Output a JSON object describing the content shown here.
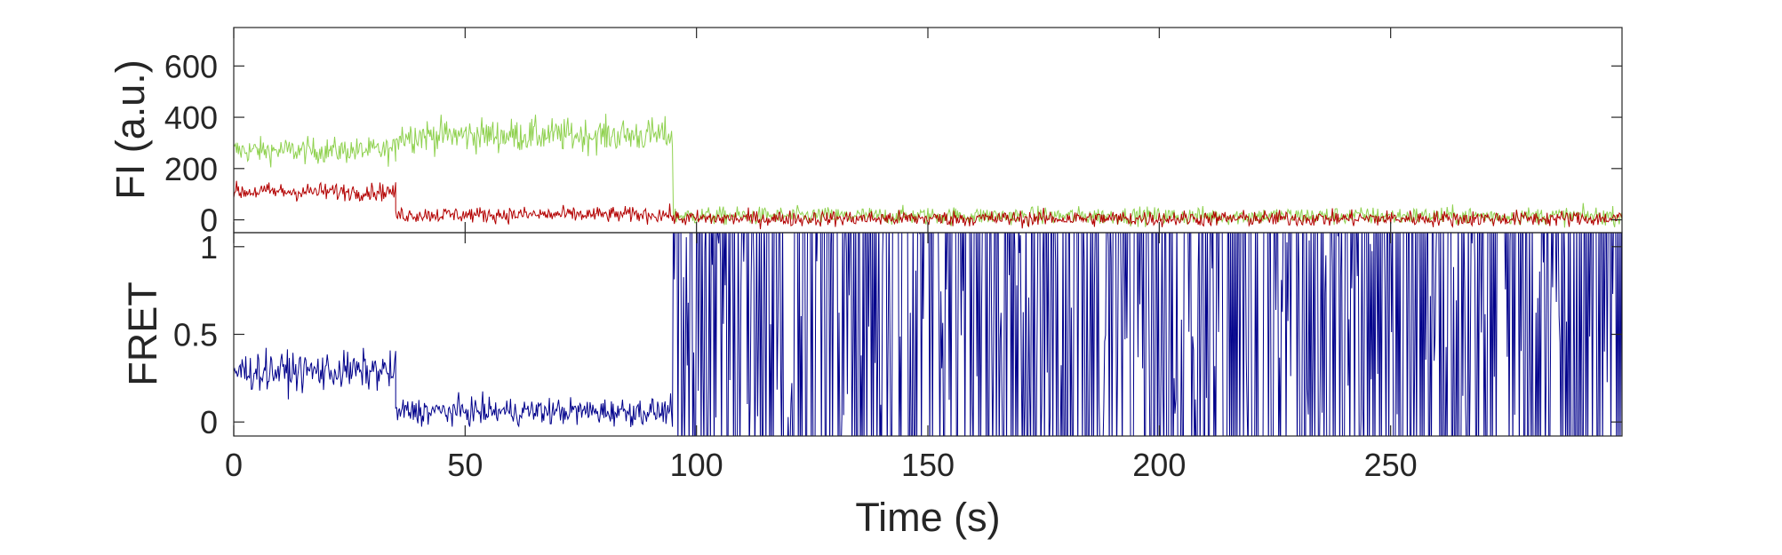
{
  "chart_data": [
    {
      "type": "line",
      "ylabel": "FI (a.u.)",
      "xlim": [
        0,
        300
      ],
      "ylim": [
        -50,
        750
      ],
      "yticks": [
        0,
        200,
        400,
        600
      ],
      "grid": false,
      "series": [
        {
          "color": "#8fd14f",
          "segments": [
            {
              "x_start": 0,
              "x_end": 35,
              "mean": 270,
              "noise": 65
            },
            {
              "x_start": 35,
              "x_end": 95,
              "mean": 330,
              "noise": 85
            },
            {
              "x_start": 95,
              "x_end": 300,
              "mean": 15,
              "noise": 45
            }
          ]
        },
        {
          "color": "#b30000",
          "segments": [
            {
              "x_start": 0,
              "x_end": 35,
              "mean": 110,
              "noise": 45
            },
            {
              "x_start": 35,
              "x_end": 95,
              "mean": 20,
              "noise": 40
            },
            {
              "x_start": 95,
              "x_end": 300,
              "mean": 5,
              "noise": 40
            }
          ]
        }
      ]
    },
    {
      "type": "line",
      "xlabel": "Time (s)",
      "ylabel": "FRET",
      "xlim": [
        0,
        300
      ],
      "ylim": [
        -0.08,
        1.08
      ],
      "xticks": [
        0,
        50,
        100,
        150,
        200,
        250
      ],
      "yticks": [
        0,
        0.5,
        1
      ],
      "grid": false,
      "series": [
        {
          "color": "#00008b",
          "segments": [
            {
              "x_start": 0,
              "x_end": 35,
              "mean": 0.29,
              "noise": 0.14
            },
            {
              "x_start": 35,
              "x_end": 95,
              "mean": 0.06,
              "noise": 0.1
            },
            {
              "x_start": 95,
              "x_end": 300,
              "mean": 0.5,
              "noise": 0.9
            }
          ]
        }
      ]
    }
  ]
}
